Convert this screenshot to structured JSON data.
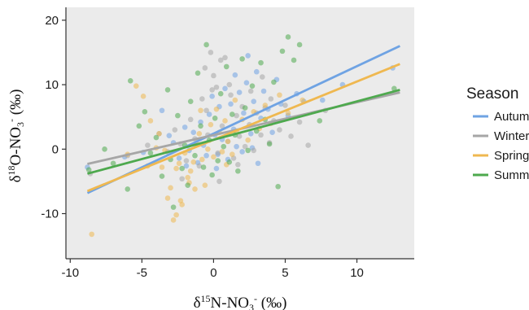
{
  "chart_data": {
    "type": "scatter",
    "title": "",
    "xlabel": {
      "delta": "δ",
      "sup": "15",
      "main": "N-NO",
      "sub": "3",
      "sup2": "-",
      "unit": " (‰)"
    },
    "ylabel": {
      "delta": "δ",
      "sup": "18",
      "main": "O-NO",
      "sub": "3",
      "sup2": "-",
      "unit": " (‰)"
    },
    "xlim": [
      -10.3,
      14
    ],
    "ylim": [
      -17,
      22
    ],
    "xticks": [
      -10,
      -5,
      0,
      5,
      10
    ],
    "yticks": [
      -10,
      0,
      10,
      20
    ],
    "grid": false,
    "legend": {
      "title": "Season",
      "placement": "right"
    },
    "series": [
      {
        "name": "Autumn",
        "color": "#6fa3e3",
        "trend": {
          "x": [
            -8.8,
            13
          ],
          "y": [
            -6.8,
            16.0
          ]
        },
        "points": [
          [
            -8.8,
            -2.8
          ],
          [
            -6.2,
            -1.2
          ],
          [
            -4.9,
            -0.5
          ],
          [
            -3.6,
            6.0
          ],
          [
            -3.1,
            2.1
          ],
          [
            -2.8,
            1.0
          ],
          [
            -2.4,
            -1.4
          ],
          [
            -2.0,
            3.4
          ],
          [
            -1.7,
            -0.2
          ],
          [
            -1.4,
            2.6
          ],
          [
            -1.1,
            -2.1
          ],
          [
            -0.9,
            4.2
          ],
          [
            -0.7,
            0.6
          ],
          [
            -0.5,
            -1.0
          ],
          [
            -0.3,
            5.4
          ],
          [
            -0.1,
            8.2
          ],
          [
            0.1,
            2.2
          ],
          [
            0.3,
            -0.8
          ],
          [
            0.4,
            6.6
          ],
          [
            0.6,
            1.5
          ],
          [
            0.8,
            9.4
          ],
          [
            1.0,
            -1.6
          ],
          [
            1.2,
            7.0
          ],
          [
            1.4,
            3.1
          ],
          [
            1.5,
            11.5
          ],
          [
            1.6,
            0.4
          ],
          [
            1.8,
            8.8
          ],
          [
            2.0,
            -0.4
          ],
          [
            2.1,
            5.6
          ],
          [
            2.3,
            10.3
          ],
          [
            2.4,
            14.5
          ],
          [
            2.6,
            2.4
          ],
          [
            2.8,
            7.4
          ],
          [
            3.0,
            12.0
          ],
          [
            3.1,
            -2.2
          ],
          [
            3.3,
            4.8
          ],
          [
            3.5,
            9.0
          ],
          [
            3.8,
            6.2
          ],
          [
            4.1,
            2.6
          ],
          [
            4.4,
            10.8
          ],
          [
            4.7,
            7.0
          ],
          [
            5.2,
            5.2
          ],
          [
            5.8,
            8.6
          ],
          [
            6.3,
            7.4
          ],
          [
            7.6,
            7.6
          ],
          [
            9.0,
            10.0
          ],
          [
            12.5,
            12.6
          ],
          [
            -1.9,
            -2.6
          ],
          [
            0.2,
            -3.0
          ],
          [
            2.7,
            0.2
          ]
        ]
      },
      {
        "name": "Winter",
        "color": "#a6a6a6",
        "trend": {
          "x": [
            -8.8,
            13
          ],
          "y": [
            -2.3,
            8.8
          ]
        },
        "points": [
          [
            -8.6,
            -3.8
          ],
          [
            -6.0,
            -1.0
          ],
          [
            -4.6,
            0.6
          ],
          [
            -3.8,
            2.4
          ],
          [
            -3.2,
            -0.4
          ],
          [
            -2.7,
            3.0
          ],
          [
            -2.3,
            0.8
          ],
          [
            -1.9,
            -1.8
          ],
          [
            -1.6,
            4.6
          ],
          [
            -1.3,
            1.6
          ],
          [
            -1.0,
            -2.6
          ],
          [
            -0.8,
            7.8
          ],
          [
            -0.6,
            12.6
          ],
          [
            -0.4,
            2.2
          ],
          [
            -0.2,
            15.0
          ],
          [
            0.0,
            11.4
          ],
          [
            0.2,
            9.6
          ],
          [
            0.3,
            -0.6
          ],
          [
            0.5,
            13.8
          ],
          [
            0.6,
            3.6
          ],
          [
            0.8,
            14.2
          ],
          [
            1.0,
            1.2
          ],
          [
            1.2,
            8.4
          ],
          [
            1.4,
            -1.4
          ],
          [
            1.6,
            5.2
          ],
          [
            1.8,
            2.0
          ],
          [
            2.0,
            6.6
          ],
          [
            2.2,
            0.4
          ],
          [
            2.5,
            3.8
          ],
          [
            2.8,
            -0.2
          ],
          [
            3.0,
            5.6
          ],
          [
            3.3,
            2.2
          ],
          [
            3.6,
            6.4
          ],
          [
            3.9,
            1.0
          ],
          [
            4.2,
            4.4
          ],
          [
            4.6,
            3.0
          ],
          [
            5.0,
            6.8
          ],
          [
            5.4,
            2.0
          ],
          [
            6.0,
            4.2
          ],
          [
            6.6,
            0.6
          ],
          [
            0.4,
            -5.0
          ],
          [
            -2.2,
            -4.6
          ],
          [
            1.7,
            -2.4
          ],
          [
            -0.5,
            6.0
          ],
          [
            2.6,
            9.0
          ],
          [
            4.0,
            7.8
          ],
          [
            7.8,
            6.0
          ],
          [
            -0.1,
            9.2
          ],
          [
            1.1,
            10.0
          ],
          [
            3.4,
            11.2
          ]
        ]
      },
      {
        "name": "Spring",
        "color": "#efb850",
        "trend": {
          "x": [
            -8.8,
            13
          ],
          "y": [
            -6.5,
            13.2
          ]
        },
        "points": [
          [
            -8.5,
            -13.2
          ],
          [
            -6.0,
            -0.8
          ],
          [
            -5.4,
            9.8
          ],
          [
            -4.9,
            8.2
          ],
          [
            -4.6,
            -2.6
          ],
          [
            -4.0,
            0.2
          ],
          [
            -3.6,
            -2.8
          ],
          [
            -3.2,
            -7.6
          ],
          [
            -3.0,
            -6.0
          ],
          [
            -2.8,
            -11.0
          ],
          [
            -2.6,
            -10.2
          ],
          [
            -2.4,
            -2.2
          ],
          [
            -2.2,
            -8.6
          ],
          [
            -2.0,
            -0.6
          ],
          [
            -1.8,
            -4.4
          ],
          [
            -1.6,
            -3.4
          ],
          [
            -1.4,
            -2.0
          ],
          [
            -1.2,
            0.8
          ],
          [
            -1.0,
            2.4
          ],
          [
            -0.8,
            -1.6
          ],
          [
            -0.6,
            -5.6
          ],
          [
            -0.4,
            0.0
          ],
          [
            -0.2,
            3.8
          ],
          [
            0.0,
            -1.2
          ],
          [
            0.2,
            6.2
          ],
          [
            0.4,
            2.6
          ],
          [
            0.6,
            -0.4
          ],
          [
            0.8,
            4.4
          ],
          [
            1.0,
            1.2
          ],
          [
            1.3,
            -0.8
          ],
          [
            1.6,
            2.8
          ],
          [
            2.0,
            4.6
          ],
          [
            2.4,
            1.4
          ],
          [
            2.8,
            5.8
          ],
          [
            3.2,
            3.2
          ],
          [
            3.6,
            6.8
          ],
          [
            4.0,
            4.0
          ],
          [
            4.6,
            8.4
          ],
          [
            5.2,
            5.6
          ],
          [
            6.2,
            7.6
          ],
          [
            -3.8,
            2.4
          ],
          [
            -1.3,
            -6.2
          ],
          [
            0.9,
            -2.4
          ],
          [
            -0.9,
            6.0
          ],
          [
            1.5,
            7.6
          ],
          [
            -2.6,
            -3.0
          ],
          [
            -4.4,
            4.4
          ],
          [
            -3.4,
            -0.2
          ],
          [
            -2.3,
            -8.0
          ],
          [
            -1.7,
            -5.2
          ]
        ]
      },
      {
        "name": "Summer",
        "color": "#4ea94e",
        "trend": {
          "x": [
            -8.8,
            13
          ],
          "y": [
            -3.8,
            9.2
          ]
        },
        "points": [
          [
            -8.7,
            -3.2
          ],
          [
            -7.6,
            0.0
          ],
          [
            -7.0,
            -2.2
          ],
          [
            -6.0,
            -6.2
          ],
          [
            -5.8,
            10.6
          ],
          [
            -5.2,
            3.6
          ],
          [
            -4.8,
            5.8
          ],
          [
            -4.4,
            -0.6
          ],
          [
            -4.0,
            1.8
          ],
          [
            -3.6,
            -4.2
          ],
          [
            -3.2,
            9.2
          ],
          [
            -3.0,
            -1.6
          ],
          [
            -2.8,
            -9.0
          ],
          [
            -2.5,
            5.2
          ],
          [
            -2.2,
            -3.0
          ],
          [
            -2.0,
            0.6
          ],
          [
            -1.8,
            -5.6
          ],
          [
            -1.6,
            7.4
          ],
          [
            -1.3,
            -1.0
          ],
          [
            -1.1,
            11.8
          ],
          [
            -0.9,
            3.6
          ],
          [
            -0.7,
            -2.8
          ],
          [
            -0.5,
            16.2
          ],
          [
            -0.3,
            1.4
          ],
          [
            -0.1,
            -4.0
          ],
          [
            0.1,
            4.8
          ],
          [
            0.3,
            -1.8
          ],
          [
            0.5,
            8.6
          ],
          [
            0.7,
            0.4
          ],
          [
            0.9,
            12.8
          ],
          [
            1.1,
            -2.0
          ],
          [
            1.3,
            5.4
          ],
          [
            1.5,
            2.2
          ],
          [
            1.7,
            -3.4
          ],
          [
            2.0,
            14.0
          ],
          [
            2.2,
            6.4
          ],
          [
            2.4,
            -0.2
          ],
          [
            2.7,
            9.8
          ],
          [
            3.0,
            2.8
          ],
          [
            3.3,
            13.4
          ],
          [
            3.6,
            4.6
          ],
          [
            3.9,
            0.8
          ],
          [
            4.2,
            10.4
          ],
          [
            4.5,
            -5.8
          ],
          [
            4.8,
            15.2
          ],
          [
            5.2,
            17.4
          ],
          [
            5.6,
            13.8
          ],
          [
            6.0,
            16.2
          ],
          [
            7.4,
            4.4
          ],
          [
            12.6,
            9.4
          ]
        ]
      }
    ]
  }
}
